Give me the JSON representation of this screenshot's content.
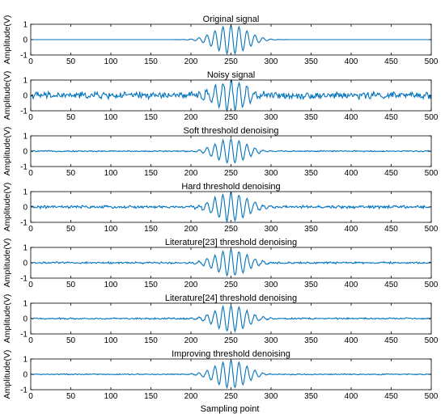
{
  "figure": {
    "xlabel": "Sampling point",
    "signal_color": "#0072BD",
    "axis_color": "#000000"
  },
  "chart_data": [
    {
      "type": "line",
      "title": "Original signal",
      "xlabel": "",
      "ylabel": "Amplitude(V)",
      "xlim": [
        0,
        500
      ],
      "ylim": [
        -1,
        1
      ],
      "xticks": [
        "0",
        "50",
        "100",
        "150",
        "200",
        "250",
        "300",
        "350",
        "400",
        "450",
        "500"
      ],
      "yticks": [
        "-1",
        "0",
        "1"
      ],
      "grid": false,
      "signal": {
        "kind": "packet",
        "center": 250,
        "envelope_width": 28,
        "amplitude": 0.95,
        "period": 10,
        "noise": 0.0
      }
    },
    {
      "type": "line",
      "title": "Noisy signal",
      "xlabel": "",
      "ylabel": "Amplitude(V)",
      "xlim": [
        0,
        500
      ],
      "ylim": [
        -1,
        1
      ],
      "xticks": [
        "0",
        "50",
        "100",
        "150",
        "200",
        "250",
        "300",
        "350",
        "400",
        "450",
        "500"
      ],
      "yticks": [
        "-1",
        "0",
        "1"
      ],
      "grid": false,
      "signal": {
        "kind": "packet",
        "center": 250,
        "envelope_width": 28,
        "amplitude": 0.95,
        "period": 10,
        "noise": 0.22
      }
    },
    {
      "type": "line",
      "title": "Soft threshold denoising",
      "xlabel": "",
      "ylabel": "Amplitude(V)",
      "xlim": [
        0,
        500
      ],
      "ylim": [
        -1,
        1
      ],
      "xticks": [
        "0",
        "50",
        "100",
        "150",
        "200",
        "250",
        "300",
        "350",
        "400",
        "450",
        "500"
      ],
      "yticks": [
        "-1",
        "0",
        "1"
      ],
      "grid": false,
      "signal": {
        "kind": "packet",
        "center": 250,
        "envelope_width": 26,
        "amplitude": 0.8,
        "period": 10,
        "noise": 0.04
      }
    },
    {
      "type": "line",
      "title": "Hard threshold denoising",
      "xlabel": "",
      "ylabel": "Amplitude(V)",
      "xlim": [
        0,
        500
      ],
      "ylim": [
        -1,
        1
      ],
      "xticks": [
        "0",
        "50",
        "100",
        "150",
        "200",
        "250",
        "300",
        "350",
        "400",
        "450",
        "500"
      ],
      "yticks": [
        "-1",
        "0",
        "1"
      ],
      "grid": false,
      "signal": {
        "kind": "packet",
        "center": 250,
        "envelope_width": 28,
        "amplitude": 0.92,
        "period": 10,
        "noise": 0.09
      }
    },
    {
      "type": "line",
      "title": "Literature[23] threshold denoising",
      "xlabel": "",
      "ylabel": "Amplitude(V)",
      "xlim": [
        0,
        500
      ],
      "ylim": [
        -1,
        1
      ],
      "xticks": [
        "0",
        "50",
        "100",
        "150",
        "200",
        "250",
        "300",
        "350",
        "400",
        "450",
        "500"
      ],
      "yticks": [
        "-1",
        "0",
        "1"
      ],
      "grid": false,
      "signal": {
        "kind": "packet",
        "center": 250,
        "envelope_width": 27,
        "amplitude": 0.88,
        "period": 10,
        "noise": 0.06
      }
    },
    {
      "type": "line",
      "title": "Literature[24] threshold denoising",
      "xlabel": "",
      "ylabel": "Amplitude(V)",
      "xlim": [
        0,
        500
      ],
      "ylim": [
        -1,
        1
      ],
      "xticks": [
        "0",
        "50",
        "100",
        "150",
        "200",
        "250",
        "300",
        "350",
        "400",
        "450",
        "500"
      ],
      "yticks": [
        "-1",
        "0",
        "1"
      ],
      "grid": false,
      "signal": {
        "kind": "packet",
        "center": 250,
        "envelope_width": 27,
        "amplitude": 0.85,
        "period": 10,
        "noise": 0.05
      }
    },
    {
      "type": "line",
      "title": "Improving threshold denoising",
      "xlabel": "Sampling point",
      "ylabel": "Amplitude(V)",
      "xlim": [
        0,
        500
      ],
      "ylim": [
        -1,
        1
      ],
      "xticks": [
        "0",
        "50",
        "100",
        "150",
        "200",
        "250",
        "300",
        "350",
        "400",
        "450",
        "500"
      ],
      "yticks": [
        "-1",
        "0",
        "1"
      ],
      "grid": false,
      "signal": {
        "kind": "packet",
        "center": 250,
        "envelope_width": 27,
        "amplitude": 0.9,
        "period": 10,
        "noise": 0.035
      }
    }
  ]
}
